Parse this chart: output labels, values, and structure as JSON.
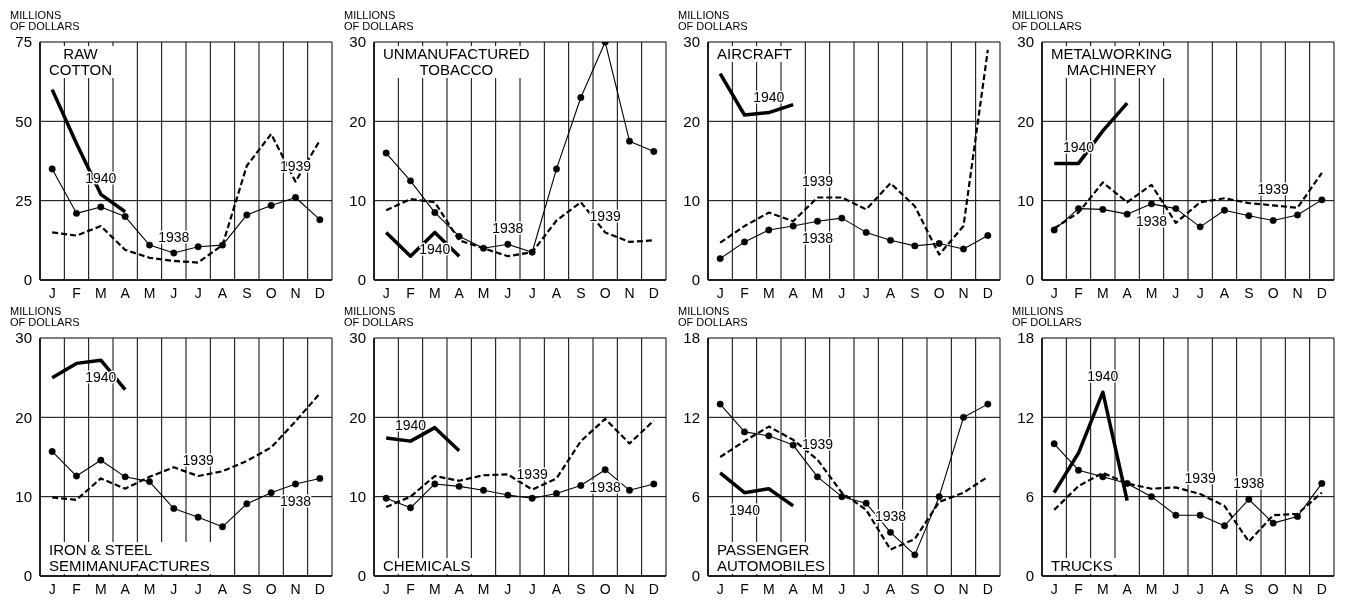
{
  "chart_data": [
    {
      "type": "line",
      "title": "RAW\nCOTTON",
      "ylabel": "MILLIONS OF DOLLARS",
      "categories": [
        "J",
        "F",
        "M",
        "A",
        "M",
        "J",
        "J",
        "A",
        "S",
        "O",
        "N",
        "D"
      ],
      "ylim": [
        0,
        75
      ],
      "yticks": [
        0,
        25,
        50,
        75
      ],
      "grid": true,
      "series": [
        {
          "name": "1938",
          "color": "#000000",
          "line_style": "solid",
          "marker": "circle",
          "values": [
            35,
            21,
            23,
            20,
            11,
            8.5,
            10.5,
            11,
            20.5,
            23.5,
            26,
            19
          ]
        },
        {
          "name": "1939",
          "color": "#000000",
          "line_style": "dashed",
          "marker": "none",
          "values": [
            15,
            14,
            17,
            9.5,
            7,
            6,
            5.5,
            11,
            36,
            46,
            31,
            44
          ]
        },
        {
          "name": "1940",
          "color": "#000000",
          "line_style": "solid",
          "marker": "none",
          "values": [
            60,
            43,
            27,
            21.5,
            null,
            null,
            null,
            null,
            null,
            null,
            null,
            null
          ]
        }
      ]
    },
    {
      "type": "line",
      "title": "UNMANUFACTURED\nTOBACCO",
      "ylabel": "MILLIONS OF DOLLARS",
      "categories": [
        "J",
        "F",
        "M",
        "A",
        "M",
        "J",
        "J",
        "A",
        "S",
        "O",
        "N",
        "D"
      ],
      "ylim": [
        0,
        30
      ],
      "yticks": [
        0,
        10,
        20,
        30
      ],
      "grid": true,
      "series": [
        {
          "name": "1938",
          "color": "#000000",
          "line_style": "solid",
          "marker": "circle",
          "values": [
            16,
            12.5,
            8.5,
            5.5,
            4,
            4.5,
            3.5,
            14,
            23,
            30,
            17.5,
            16.2
          ]
        },
        {
          "name": "1939",
          "color": "#000000",
          "line_style": "dashed",
          "marker": "none",
          "values": [
            8.8,
            10.2,
            9.8,
            5,
            4,
            3,
            3.5,
            7.5,
            9.8,
            6,
            4.8,
            5
          ]
        },
        {
          "name": "1940",
          "color": "#000000",
          "line_style": "solid",
          "marker": "none",
          "values": [
            6,
            3,
            6,
            3,
            null,
            null,
            null,
            null,
            null,
            null,
            null,
            null
          ]
        }
      ]
    },
    {
      "type": "line",
      "title": "AIRCRAFT",
      "ylabel": "MILLIONS OF DOLLARS",
      "categories": [
        "J",
        "F",
        "M",
        "A",
        "M",
        "J",
        "J",
        "A",
        "S",
        "O",
        "N",
        "D"
      ],
      "ylim": [
        0,
        30
      ],
      "yticks": [
        0,
        10,
        20,
        30
      ],
      "grid": true,
      "series": [
        {
          "name": "1938",
          "color": "#000000",
          "line_style": "solid",
          "marker": "circle",
          "values": [
            2.7,
            4.8,
            6.3,
            6.8,
            7.4,
            7.8,
            6,
            5,
            4.3,
            4.6,
            3.9,
            5.6
          ]
        },
        {
          "name": "1939",
          "color": "#000000",
          "line_style": "dashed",
          "marker": "none",
          "values": [
            4.7,
            6.8,
            8.5,
            7.4,
            10.4,
            10.4,
            8.9,
            12.2,
            9.3,
            3.2,
            6.8,
            29
          ]
        },
        {
          "name": "1940",
          "color": "#000000",
          "line_style": "solid",
          "marker": "none",
          "values": [
            26,
            20.8,
            21.1,
            22.1,
            null,
            null,
            null,
            null,
            null,
            null,
            null,
            null
          ]
        }
      ]
    },
    {
      "type": "line",
      "title": "METALWORKING\nMACHINERY",
      "ylabel": "MILLIONS OF DOLLARS",
      "categories": [
        "J",
        "F",
        "M",
        "A",
        "M",
        "J",
        "J",
        "A",
        "S",
        "O",
        "N",
        "D"
      ],
      "ylim": [
        0,
        30
      ],
      "yticks": [
        0,
        10,
        20,
        30
      ],
      "grid": true,
      "series": [
        {
          "name": "1938",
          "color": "#000000",
          "line_style": "solid",
          "marker": "circle",
          "values": [
            6.3,
            9,
            8.9,
            8.3,
            9.6,
            9,
            6.7,
            8.8,
            8.1,
            7.5,
            8.2,
            10.1
          ]
        },
        {
          "name": "1939",
          "color": "#000000",
          "line_style": "dashed",
          "marker": "none",
          "values": [
            6.5,
            8.5,
            12.3,
            9.8,
            12,
            7.2,
            9.8,
            10.3,
            9.7,
            9.4,
            9.1,
            13.5
          ]
        },
        {
          "name": "1940",
          "color": "#000000",
          "line_style": "solid",
          "marker": "none",
          "values": [
            14.7,
            14.7,
            18.8,
            22.3,
            null,
            null,
            null,
            null,
            null,
            null,
            null,
            null
          ]
        }
      ]
    },
    {
      "type": "line",
      "title": "IRON & STEEL\nSEMIMANUFACTURES",
      "ylabel": "MILLIONS OF DOLLARS",
      "categories": [
        "J",
        "F",
        "M",
        "A",
        "M",
        "J",
        "J",
        "A",
        "S",
        "O",
        "N",
        "D"
      ],
      "ylim": [
        0,
        30
      ],
      "yticks": [
        0,
        10,
        20,
        30
      ],
      "grid": true,
      "series": [
        {
          "name": "1938",
          "color": "#000000",
          "line_style": "solid",
          "marker": "circle",
          "values": [
            15.7,
            12.6,
            14.6,
            12.5,
            11.9,
            8.5,
            7.4,
            6.2,
            9.1,
            10.5,
            11.6,
            12.3
          ]
        },
        {
          "name": "1939",
          "color": "#000000",
          "line_style": "dashed",
          "marker": "none",
          "values": [
            9.9,
            9.6,
            12.3,
            11,
            12.5,
            13.7,
            12.6,
            13.2,
            14.5,
            16.2,
            19.5,
            23
          ]
        },
        {
          "name": "1940",
          "color": "#000000",
          "line_style": "solid",
          "marker": "none",
          "values": [
            25,
            26.8,
            27.2,
            23.5,
            null,
            null,
            null,
            null,
            null,
            null,
            null,
            null
          ]
        }
      ]
    },
    {
      "type": "line",
      "title": "CHEMICALS",
      "ylabel": "MILLIONS OF DOLLARS",
      "categories": [
        "J",
        "F",
        "M",
        "A",
        "M",
        "J",
        "J",
        "A",
        "S",
        "O",
        "N",
        "D"
      ],
      "ylim": [
        0,
        30
      ],
      "yticks": [
        0,
        10,
        20,
        30
      ],
      "grid": true,
      "series": [
        {
          "name": "1938",
          "color": "#000000",
          "line_style": "solid",
          "marker": "circle",
          "values": [
            9.8,
            8.6,
            11.6,
            11.3,
            10.8,
            10.2,
            9.8,
            10.4,
            11.4,
            13.4,
            10.8,
            11.6
          ]
        },
        {
          "name": "1939",
          "color": "#000000",
          "line_style": "dashed",
          "marker": "none",
          "values": [
            8.7,
            10,
            12.6,
            12,
            12.7,
            12.8,
            10.9,
            12.3,
            17,
            19.8,
            16.7,
            19.6
          ]
        },
        {
          "name": "1940",
          "color": "#000000",
          "line_style": "solid",
          "marker": "none",
          "values": [
            17.4,
            17,
            18.7,
            15.8,
            null,
            null,
            null,
            null,
            null,
            null,
            null,
            null
          ]
        }
      ]
    },
    {
      "type": "line",
      "title": "PASSENGER\nAUTOMOBILES",
      "ylabel": "MILLIONS OF DOLLARS",
      "categories": [
        "J",
        "F",
        "M",
        "A",
        "M",
        "J",
        "J",
        "A",
        "S",
        "O",
        "N",
        "D"
      ],
      "ylim": [
        0,
        18
      ],
      "yticks": [
        0,
        6,
        12,
        18
      ],
      "grid": true,
      "series": [
        {
          "name": "1938",
          "color": "#000000",
          "line_style": "solid",
          "marker": "circle",
          "values": [
            13,
            10.9,
            10.6,
            9.9,
            7.5,
            6,
            5.5,
            3.3,
            1.6,
            6,
            12,
            13
          ]
        },
        {
          "name": "1939",
          "color": "#000000",
          "line_style": "dashed",
          "marker": "none",
          "values": [
            9,
            10.2,
            11.3,
            10.3,
            8.8,
            6.3,
            5,
            2,
            2.8,
            5.6,
            6.3,
            7.5
          ]
        },
        {
          "name": "1940",
          "color": "#000000",
          "line_style": "solid",
          "marker": "none",
          "values": [
            7.8,
            6.3,
            6.6,
            5.3,
            null,
            null,
            null,
            null,
            null,
            null,
            null,
            null
          ]
        }
      ]
    },
    {
      "type": "line",
      "title": "TRUCKS",
      "ylabel": "MILLIONS OF DOLLARS",
      "categories": [
        "J",
        "F",
        "M",
        "A",
        "M",
        "J",
        "J",
        "A",
        "S",
        "O",
        "N",
        "D"
      ],
      "ylim": [
        0,
        18
      ],
      "yticks": [
        0,
        6,
        12,
        18
      ],
      "grid": true,
      "series": [
        {
          "name": "1938",
          "color": "#000000",
          "line_style": "solid",
          "marker": "circle",
          "values": [
            10,
            8,
            7.5,
            7,
            6,
            4.6,
            4.6,
            3.8,
            5.8,
            4,
            4.5,
            7
          ]
        },
        {
          "name": "1939",
          "color": "#000000",
          "line_style": "dashed",
          "marker": "none",
          "values": [
            5,
            6.8,
            7.8,
            7,
            6.6,
            6.7,
            6.2,
            5.3,
            2.6,
            4.6,
            4.7,
            6.3
          ]
        },
        {
          "name": "1940",
          "color": "#000000",
          "line_style": "solid",
          "marker": "none",
          "values": [
            6.3,
            9.3,
            13.9,
            5.7,
            null,
            null,
            null,
            null,
            null,
            null,
            null,
            null
          ]
        }
      ]
    }
  ]
}
